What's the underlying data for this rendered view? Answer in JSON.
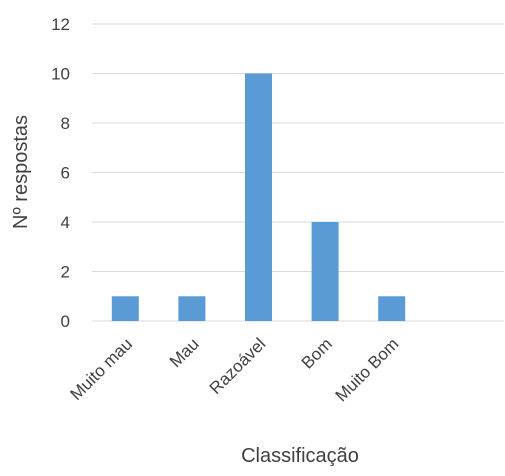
{
  "chart_data": {
    "type": "bar",
    "title": "",
    "xlabel": "Classificação",
    "ylabel": "Nº respostas",
    "categories": [
      "Muito mau",
      "Mau",
      "Razoável",
      "Bom",
      "Muito Bom"
    ],
    "values": [
      1,
      1,
      10,
      4,
      1
    ],
    "ylim": [
      0,
      12
    ],
    "yticks": [
      0,
      2,
      4,
      6,
      8,
      10,
      12
    ],
    "grid": true,
    "legend": "none",
    "bar_color": "#5B9BD5",
    "grid_color": "#D9D9D9",
    "text_color": "#404040"
  }
}
